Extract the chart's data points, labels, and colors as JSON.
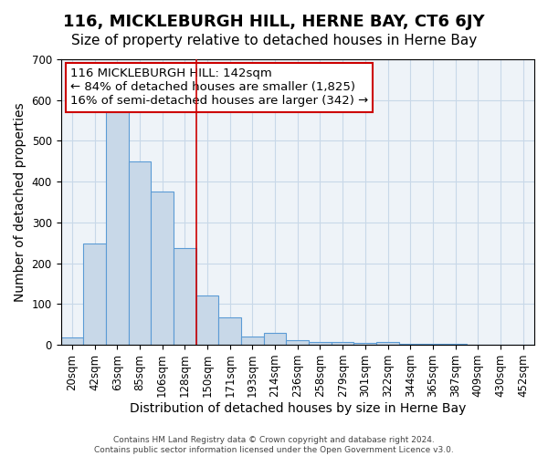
{
  "title": "116, MICKLEBURGH HILL, HERNE BAY, CT6 6JY",
  "subtitle": "Size of property relative to detached houses in Herne Bay",
  "xlabel": "Distribution of detached houses by size in Herne Bay",
  "ylabel": "Number of detached properties",
  "bar_labels": [
    "20sqm",
    "42sqm",
    "63sqm",
    "85sqm",
    "106sqm",
    "128sqm",
    "150sqm",
    "171sqm",
    "193sqm",
    "214sqm",
    "236sqm",
    "258sqm",
    "279sqm",
    "301sqm",
    "322sqm",
    "344sqm",
    "365sqm",
    "387sqm",
    "409sqm",
    "430sqm",
    "452sqm"
  ],
  "bar_values": [
    17,
    248,
    590,
    450,
    375,
    238,
    120,
    68,
    20,
    30,
    11,
    8,
    7,
    5,
    8,
    3,
    3,
    3,
    0,
    0,
    0
  ],
  "bar_color": "#c8d8e8",
  "bar_edgecolor": "#5b9bd5",
  "ylim": [
    0,
    700
  ],
  "yticks": [
    0,
    100,
    200,
    300,
    400,
    500,
    600,
    700
  ],
  "red_line_x": 5.5,
  "annotation_text": "116 MICKLEBURGH HILL: 142sqm\n← 84% of detached houses are smaller (1,825)\n16% of semi-detached houses are larger (342) →",
  "annotation_box_color": "#ffffff",
  "annotation_box_edgecolor": "#cc0000",
  "background_color": "#ffffff",
  "ax_facecolor": "#eef3f8",
  "grid_color": "#c8d8e8",
  "title_fontsize": 13,
  "subtitle_fontsize": 11,
  "xlabel_fontsize": 10,
  "ylabel_fontsize": 10,
  "tick_fontsize": 8.5,
  "annot_fontsize": 9.5,
  "footer_text": "Contains HM Land Registry data © Crown copyright and database right 2024.\nContains public sector information licensed under the Open Government Licence v3.0."
}
